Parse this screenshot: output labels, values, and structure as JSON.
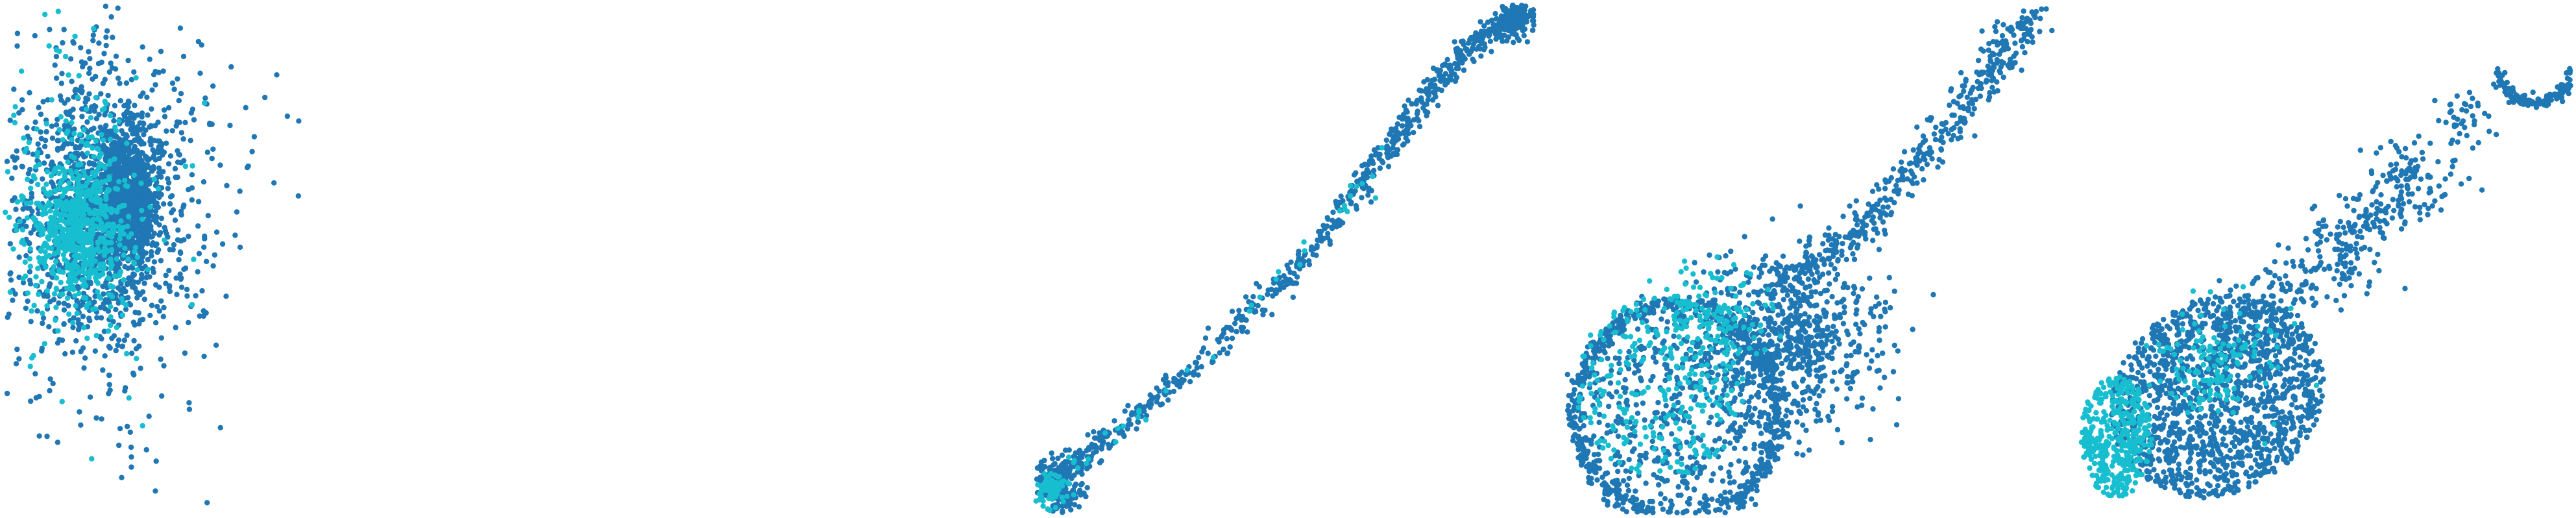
{
  "chart_data": [
    {
      "type": "scatter",
      "xlim": [
        0,
        1
      ],
      "ylim": [
        0,
        1
      ],
      "grid": false,
      "legend": "none",
      "series": [
        {
          "color": "#1f77b4",
          "clusters": [
            {
              "shape": "gaussian",
              "cx": 0.19,
              "cy": 0.6,
              "sx": 0.075,
              "sy": 0.13,
              "n": 900
            },
            {
              "shape": "gaussian",
              "cx": 0.24,
              "cy": 0.62,
              "sx": 0.03,
              "sy": 0.07,
              "n": 900
            },
            {
              "shape": "gaussian",
              "cx": 0.2,
              "cy": 0.6,
              "sx": 0.14,
              "sy": 0.22,
              "n": 500
            }
          ],
          "points": [
            [
              0.02,
              0.68
            ],
            [
              0.01,
              0.53
            ],
            [
              0.37,
              0.64
            ],
            [
              0.36,
              0.44
            ],
            [
              0.34,
              0.43
            ],
            [
              0.37,
              0.41
            ],
            [
              0.31,
              0.23
            ],
            [
              0.25,
              0.11
            ],
            [
              0.25,
              0.09
            ],
            [
              0.395,
              0.54
            ],
            [
              0.4,
              0.02
            ]
          ]
        },
        {
          "color": "#17becf",
          "clusters": [
            {
              "shape": "gaussian",
              "cx": 0.15,
              "cy": 0.56,
              "sx": 0.05,
              "sy": 0.08,
              "n": 650
            },
            {
              "shape": "gaussian",
              "cx": 0.13,
              "cy": 0.6,
              "sx": 0.1,
              "sy": 0.18,
              "n": 150
            }
          ],
          "points": [
            [
              0.02,
              0.8
            ]
          ]
        }
      ]
    },
    {
      "type": "scatter",
      "xlim": [
        0,
        1
      ],
      "ylim": [
        0,
        1
      ],
      "grid": false,
      "legend": "none",
      "series": []
    },
    {
      "type": "scatter",
      "xlim": [
        0,
        1
      ],
      "ylim": [
        0,
        1
      ],
      "grid": false,
      "legend": "none",
      "series": [
        {
          "color": "#1f77b4",
          "clusters": [
            {
              "shape": "curve",
              "path": [
                [
                  0.02,
                  0.05
                ],
                [
                  0.15,
                  0.15
                ],
                [
                  0.35,
                  0.32
                ],
                [
                  0.55,
                  0.52
                ],
                [
                  0.7,
                  0.72
                ],
                [
                  0.8,
                  0.85
                ],
                [
                  0.9,
                  0.95
                ],
                [
                  0.98,
                  1.0
                ]
              ],
              "spread": 0.012,
              "n": 750
            },
            {
              "shape": "gaussian",
              "cx": 0.05,
              "cy": 0.05,
              "sx": 0.025,
              "sy": 0.03,
              "n": 200
            },
            {
              "shape": "gaussian",
              "cx": 0.95,
              "cy": 0.97,
              "sx": 0.02,
              "sy": 0.02,
              "n": 120
            }
          ]
        },
        {
          "color": "#17becf",
          "clusters": [
            {
              "shape": "gaussian",
              "cx": 0.03,
              "cy": 0.04,
              "sx": 0.015,
              "sy": 0.02,
              "n": 70
            },
            {
              "shape": "curve",
              "path": [
                [
                  0.02,
                  0.05
                ],
                [
                  0.15,
                  0.15
                ],
                [
                  0.35,
                  0.32
                ],
                [
                  0.55,
                  0.52
                ],
                [
                  0.7,
                  0.72
                ]
              ],
              "spread": 0.012,
              "n": 40
            }
          ]
        }
      ]
    },
    {
      "type": "scatter",
      "xlim": [
        0,
        1
      ],
      "ylim": [
        0,
        1
      ],
      "grid": false,
      "legend": "none",
      "series": [
        {
          "color": "#1f77b4",
          "clusters": [
            {
              "shape": "ring",
              "cx": 0.25,
              "cy": 0.2,
              "rx": 0.2,
              "ry": 0.21,
              "spread": 0.01,
              "n": 700
            },
            {
              "shape": "disk",
              "cx": 0.25,
              "cy": 0.2,
              "rx": 0.19,
              "ry": 0.2,
              "n": 450
            },
            {
              "shape": "gaussian",
              "cx": 0.47,
              "cy": 0.35,
              "sx": 0.09,
              "sy": 0.08,
              "n": 700
            },
            {
              "shape": "curve",
              "path": [
                [
                  0.45,
                  0.45
                ],
                [
                  0.6,
                  0.55
                ],
                [
                  0.75,
                  0.72
                ],
                [
                  0.88,
                  0.88
                ],
                [
                  0.96,
                  0.98
                ]
              ],
              "spread": 0.02,
              "n": 420
            }
          ]
        },
        {
          "color": "#17becf",
          "clusters": [
            {
              "shape": "disk",
              "cx": 0.22,
              "cy": 0.25,
              "rx": 0.17,
              "ry": 0.18,
              "n": 260
            },
            {
              "shape": "gaussian",
              "cx": 0.32,
              "cy": 0.38,
              "sx": 0.06,
              "sy": 0.05,
              "n": 120
            }
          ]
        }
      ]
    },
    {
      "type": "scatter",
      "xlim": [
        0,
        1
      ],
      "ylim": [
        0,
        1
      ],
      "grid": false,
      "legend": "none",
      "series": [
        {
          "color": "#1f77b4",
          "clusters": [
            {
              "shape": "ellipse",
              "cx": 0.3,
              "cy": 0.23,
              "rx": 0.22,
              "ry": 0.19,
              "angle": 35,
              "n": 1400
            },
            {
              "shape": "curve",
              "path": [
                [
                  0.35,
                  0.35
                ],
                [
                  0.5,
                  0.48
                ],
                [
                  0.62,
                  0.6
                ],
                [
                  0.72,
                  0.68
                ]
              ],
              "spread": 0.04,
              "n": 380
            },
            {
              "shape": "ring",
              "cx": 0.93,
              "cy": 0.9,
              "rx": 0.08,
              "ry": 0.09,
              "spread": 0.006,
              "arc": [
                200,
                360
              ],
              "n": 160
            },
            {
              "shape": "gaussian",
              "cx": 0.78,
              "cy": 0.77,
              "sx": 0.025,
              "sy": 0.03,
              "n": 40
            }
          ]
        },
        {
          "color": "#17becf",
          "clusters": [
            {
              "shape": "ellipse",
              "cx": 0.1,
              "cy": 0.15,
              "rx": 0.07,
              "ry": 0.12,
              "angle": 0,
              "n": 380
            },
            {
              "shape": "gaussian",
              "cx": 0.3,
              "cy": 0.3,
              "sx": 0.07,
              "sy": 0.06,
              "n": 140
            }
          ]
        }
      ]
    }
  ]
}
